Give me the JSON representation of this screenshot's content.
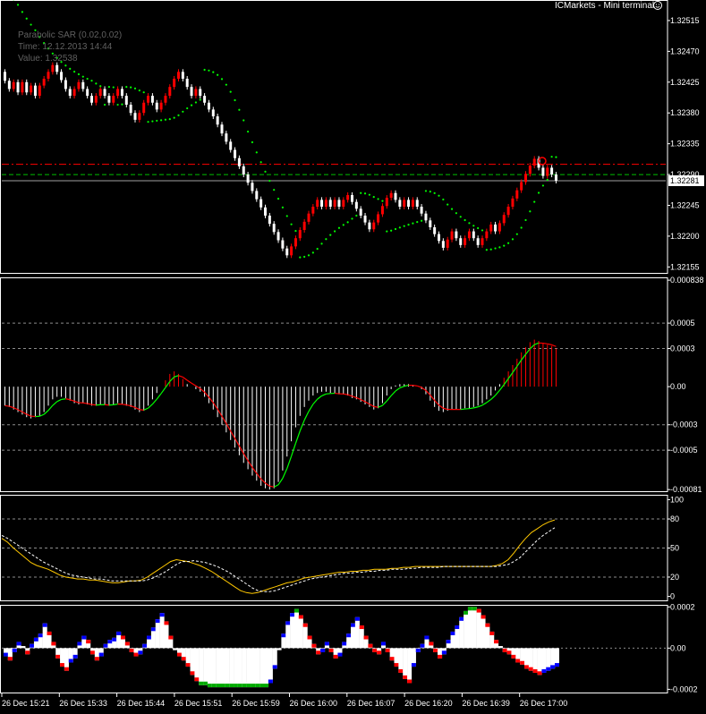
{
  "window": {
    "title": "ICMarkets - Mini terminal",
    "title_icon": "smiley-icon"
  },
  "tooltip": {
    "line1": "Parabolic SAR (0.02,0.02)",
    "line2": "Time: 12.12.2013 14:44",
    "line3": "Value: 1.32538"
  },
  "colors": {
    "background": "#000000",
    "axis": "#ffffff",
    "grid": "#8c8c8c",
    "bull": "#ff0000",
    "bear": "#ffffff",
    "sar": "#00ff00",
    "sell_level": "#ff0000",
    "buy_level": "#00c000",
    "bid_line": "#a0a0a0",
    "osma_pos": "#ff0000",
    "osma_neg": "#ffffff",
    "signal_green": "#00ff00",
    "signal_red": "#ff0000",
    "stoch_main": "#ffc800",
    "stoch_signal": "#ffffff",
    "b_green": "#00aa00",
    "b_blue": "#0000ff",
    "b_red": "#ff0000",
    "b_white": "#ffffff"
  },
  "chart_data": [
    {
      "type": "candlestick",
      "name": "main",
      "y_ticks": [
        "1.32515",
        "1.32470",
        "1.32425",
        "1.32380",
        "1.32335",
        "1.32290",
        "1.32245",
        "1.32200",
        "1.32155"
      ],
      "ylim": [
        1.32145,
        1.32545
      ],
      "price_label": "1.32281",
      "price_label_value": 1.32281,
      "levels": {
        "red_dashdot": 1.32305,
        "green_dashed": 1.3229
      },
      "sar_tooltip": "Parabolic SAR (0.02,0.02)",
      "bars": [
        [
          1.3244,
          1.32427
        ],
        [
          1.32427,
          1.32415
        ],
        [
          1.32415,
          1.32425
        ],
        [
          1.32425,
          1.3241
        ],
        [
          1.3241,
          1.32425
        ],
        [
          1.32425,
          1.3241
        ],
        [
          1.3241,
          1.3242
        ],
        [
          1.3242,
          1.32405
        ],
        [
          1.32405,
          1.3242
        ],
        [
          1.3242,
          1.3243
        ],
        [
          1.3243,
          1.3244
        ],
        [
          1.3244,
          1.3245
        ],
        [
          1.3245,
          1.3244
        ],
        [
          1.3244,
          1.32428
        ],
        [
          1.32428,
          1.32415
        ],
        [
          1.32415,
          1.32405
        ],
        [
          1.32405,
          1.32415
        ],
        [
          1.32415,
          1.32425
        ],
        [
          1.32425,
          1.32415
        ],
        [
          1.32415,
          1.32405
        ],
        [
          1.32405,
          1.32395
        ],
        [
          1.32395,
          1.32405
        ],
        [
          1.32405,
          1.32415
        ],
        [
          1.32415,
          1.32405
        ],
        [
          1.32405,
          1.32395
        ],
        [
          1.32395,
          1.32405
        ],
        [
          1.32405,
          1.32415
        ],
        [
          1.32415,
          1.32405
        ],
        [
          1.32405,
          1.32392
        ],
        [
          1.32392,
          1.3238
        ],
        [
          1.3238,
          1.3237
        ],
        [
          1.3237,
          1.3238
        ],
        [
          1.3238,
          1.32395
        ],
        [
          1.32395,
          1.32405
        ],
        [
          1.32405,
          1.32395
        ],
        [
          1.32395,
          1.32385
        ],
        [
          1.32385,
          1.32395
        ],
        [
          1.32395,
          1.32405
        ],
        [
          1.32405,
          1.32418
        ],
        [
          1.32418,
          1.3243
        ],
        [
          1.3243,
          1.3244
        ],
        [
          1.3244,
          1.3243
        ],
        [
          1.3243,
          1.32418
        ],
        [
          1.32418,
          1.32405
        ],
        [
          1.32405,
          1.32415
        ],
        [
          1.32415,
          1.32405
        ],
        [
          1.32405,
          1.32395
        ],
        [
          1.32395,
          1.32385
        ],
        [
          1.32385,
          1.32375
        ],
        [
          1.32375,
          1.32363
        ],
        [
          1.32363,
          1.3235
        ],
        [
          1.3235,
          1.32338
        ],
        [
          1.32338,
          1.32326
        ],
        [
          1.32326,
          1.32314
        ],
        [
          1.32314,
          1.32302
        ],
        [
          1.32302,
          1.3229
        ],
        [
          1.3229,
          1.32278
        ],
        [
          1.32278,
          1.32266
        ],
        [
          1.32266,
          1.32254
        ],
        [
          1.32254,
          1.32242
        ],
        [
          1.32242,
          1.3223
        ],
        [
          1.3223,
          1.32218
        ],
        [
          1.32218,
          1.32206
        ],
        [
          1.32206,
          1.32194
        ],
        [
          1.32194,
          1.32182
        ],
        [
          1.32182,
          1.32172
        ],
        [
          1.32172,
          1.32185
        ],
        [
          1.32185,
          1.32197
        ],
        [
          1.32197,
          1.32209
        ],
        [
          1.32209,
          1.32221
        ],
        [
          1.32221,
          1.32233
        ],
        [
          1.32233,
          1.32243
        ],
        [
          1.32243,
          1.32253
        ],
        [
          1.32253,
          1.32243
        ],
        [
          1.32243,
          1.32253
        ],
        [
          1.32253,
          1.32243
        ],
        [
          1.32243,
          1.32253
        ],
        [
          1.32253,
          1.32243
        ],
        [
          1.32243,
          1.32253
        ],
        [
          1.32253,
          1.3226
        ],
        [
          1.3226,
          1.3225
        ],
        [
          1.3225,
          1.3224
        ],
        [
          1.3224,
          1.3223
        ],
        [
          1.3223,
          1.3222
        ],
        [
          1.3222,
          1.3221
        ],
        [
          1.3221,
          1.3222
        ],
        [
          1.3222,
          1.32232
        ],
        [
          1.32232,
          1.32244
        ],
        [
          1.32244,
          1.32256
        ],
        [
          1.32256,
          1.32263
        ],
        [
          1.32263,
          1.32253
        ],
        [
          1.32253,
          1.32243
        ],
        [
          1.32243,
          1.32253
        ],
        [
          1.32253,
          1.32243
        ],
        [
          1.32243,
          1.32253
        ],
        [
          1.32253,
          1.32243
        ],
        [
          1.32243,
          1.32233
        ],
        [
          1.32233,
          1.32223
        ],
        [
          1.32223,
          1.32213
        ],
        [
          1.32213,
          1.32203
        ],
        [
          1.32203,
          1.32193
        ],
        [
          1.32193,
          1.32183
        ],
        [
          1.32183,
          1.32195
        ],
        [
          1.32195,
          1.32207
        ],
        [
          1.32207,
          1.32197
        ],
        [
          1.32197,
          1.32187
        ],
        [
          1.32187,
          1.32197
        ],
        [
          1.32197,
          1.32207
        ],
        [
          1.32207,
          1.32197
        ],
        [
          1.32197,
          1.32187
        ],
        [
          1.32187,
          1.32197
        ],
        [
          1.32197,
          1.32207
        ],
        [
          1.32207,
          1.32217
        ],
        [
          1.32217,
          1.32207
        ],
        [
          1.32207,
          1.32219
        ],
        [
          1.32219,
          1.32231
        ],
        [
          1.32231,
          1.32243
        ],
        [
          1.32243,
          1.32255
        ],
        [
          1.32255,
          1.32267
        ],
        [
          1.32267,
          1.32279
        ],
        [
          1.32279,
          1.32291
        ],
        [
          1.32291,
          1.32303
        ],
        [
          1.32303,
          1.32313
        ],
        [
          1.32313,
          1.323
        ],
        [
          1.323,
          1.32288
        ],
        [
          1.32288,
          1.323
        ],
        [
          1.323,
          1.3229
        ],
        [
          1.3229,
          1.32281
        ]
      ]
    },
    {
      "type": "histogram",
      "name": "osma",
      "y_ticks": [
        "0.000838",
        "0.0005",
        "0.0003",
        "0.00",
        "-0.0003",
        "-0.0005",
        "-0.00081"
      ],
      "ylim": [
        -0.00083,
        0.00086
      ],
      "values": [
        -0.00015,
        -0.00016,
        -0.00018,
        -0.0002,
        -0.00022,
        -0.00024,
        -0.00025,
        -0.00024,
        -0.00023,
        -0.0002,
        -0.00015,
        -0.0001,
        -8e-05,
        -8e-05,
        -9e-05,
        -0.00011,
        -0.00013,
        -0.00014,
        -0.00013,
        -0.00014,
        -0.00015,
        -0.00015,
        -0.00014,
        -0.00014,
        -0.00015,
        -0.00014,
        -0.00013,
        -0.00014,
        -0.00015,
        -0.00016,
        -0.00018,
        -0.0002,
        -0.00019,
        -0.00015,
        -0.0001,
        -5e-05,
        0.0,
        5e-05,
        0.0001,
        0.00012,
        0.0001,
        6e-05,
        2e-05,
        0.0,
        -2e-05,
        -4e-05,
        -8e-05,
        -0.00013,
        -0.00018,
        -0.00024,
        -0.0003,
        -0.00036,
        -0.00042,
        -0.00048,
        -0.00054,
        -0.0006,
        -0.00065,
        -0.0007,
        -0.00074,
        -0.00078,
        -0.0008,
        -0.00081,
        -0.0008,
        -0.00075,
        -0.00066,
        -0.00055,
        -0.00043,
        -0.00032,
        -0.00023,
        -0.00016,
        -0.00011,
        -7e-05,
        -5e-05,
        -4e-05,
        -4e-05,
        -5e-05,
        -5e-05,
        -6e-05,
        -6e-05,
        -7e-05,
        -9e-05,
        -0.0001,
        -0.00012,
        -0.00014,
        -0.00016,
        -0.00018,
        -0.00017,
        -0.00013,
        -7e-05,
        -2e-05,
        1e-05,
        2e-05,
        2e-05,
        2e-05,
        1e-05,
        0.0,
        -2e-05,
        -6e-05,
        -0.00011,
        -0.00016,
        -0.00019,
        -0.0002,
        -0.00019,
        -0.00018,
        -0.00018,
        -0.00018,
        -0.00017,
        -0.00017,
        -0.00016,
        -0.00015,
        -0.00013,
        -0.0001,
        -7e-05,
        -3e-05,
        2e-05,
        7e-05,
        0.00012,
        0.00017,
        0.00022,
        0.00027,
        0.00031,
        0.00035,
        0.00037,
        0.00036,
        0.00034,
        0.00033,
        0.00032,
        0.0003
      ]
    },
    {
      "type": "line",
      "name": "stochastic",
      "y_ticks": [
        "100",
        "80",
        "50",
        "20",
        "0"
      ],
      "ylim": [
        -5,
        105
      ],
      "series": [
        {
          "color": "stoch_main",
          "values": [
            60,
            56,
            50,
            45,
            40,
            35,
            32,
            30,
            28,
            25,
            22,
            20,
            19,
            18,
            18,
            17,
            17,
            16,
            15,
            14,
            14,
            15,
            16,
            16,
            17,
            20,
            24,
            28,
            32,
            36,
            38,
            37,
            36,
            34,
            32,
            29,
            26,
            22,
            18,
            14,
            10,
            6,
            4,
            3,
            4,
            6,
            8,
            10,
            12,
            14,
            15,
            17,
            19,
            20,
            21,
            22,
            23,
            24,
            25,
            25,
            26,
            26,
            27,
            27,
            28,
            28,
            28,
            29,
            29,
            30,
            30,
            31,
            31,
            31,
            31,
            31,
            31,
            31,
            31,
            31,
            31,
            31,
            31,
            31,
            31,
            32,
            34,
            38,
            45,
            53,
            60,
            66,
            70,
            74,
            77,
            79
          ]
        },
        {
          "color": "stoch_signal",
          "values": [
            63,
            60,
            56,
            52,
            48,
            44,
            40,
            36,
            33,
            30,
            27,
            24,
            22,
            21,
            20,
            19,
            18,
            18,
            17,
            16,
            16,
            16,
            16,
            16,
            16,
            17,
            19,
            22,
            25,
            29,
            33,
            36,
            36,
            37,
            36,
            35,
            33,
            31,
            28,
            25,
            21,
            17,
            13,
            9,
            6,
            5,
            5,
            6,
            8,
            10,
            12,
            14,
            16,
            18,
            19,
            20,
            21,
            22,
            23,
            24,
            24,
            25,
            25,
            26,
            26,
            27,
            27,
            28,
            28,
            28,
            29,
            29,
            30,
            30,
            30,
            30,
            31,
            31,
            31,
            31,
            31,
            31,
            31,
            31,
            31,
            31,
            32,
            33,
            36,
            40,
            46,
            52,
            58,
            63,
            67,
            71
          ]
        }
      ]
    },
    {
      "type": "histogram",
      "name": "bears_bulls",
      "y_ticks": [
        "0.0002",
        "0.00",
        "-0.0002"
      ],
      "ylim": [
        -0.00022,
        0.00021
      ],
      "values": [
        -4e-05,
        -6e-05,
        -2e-05,
        3e-05,
        1e-05,
        -3e-05,
        2e-05,
        5e-05,
        7e-05,
        0.00012,
        8e-05,
        3e-05,
        -5e-05,
        -9e-05,
        -0.00011,
        -7e-05,
        -5e-05,
        3e-05,
        6e-05,
        4e-05,
        -3e-05,
        -6e-05,
        -4e-05,
        2e-05,
        4e-05,
        5e-05,
        8e-05,
        6e-05,
        3e-05,
        -2e-05,
        -4e-05,
        -3e-05,
        2e-05,
        6e-05,
        0.0001,
        0.00014,
        0.00017,
        0.00013,
        6e-05,
        -1e-05,
        -4e-05,
        -6e-05,
        -9e-05,
        -0.00013,
        -0.00016,
        -0.00018,
        -0.00018,
        -0.00019,
        -0.00019,
        -0.00019,
        -0.00019,
        -0.00019,
        -0.00019,
        -0.00019,
        -0.00019,
        -0.00019,
        -0.00019,
        -0.00019,
        -0.00019,
        -0.00019,
        -0.00019,
        -0.00017,
        -0.0001,
        -1e-05,
        7e-05,
        0.00013,
        0.00017,
        0.00019,
        0.00016,
        0.00012,
        6e-05,
        2e-05,
        -3e-05,
        -2e-05,
        3e-05,
        -2e-05,
        -5e-05,
        -4e-05,
        3e-05,
        7e-05,
        0.00012,
        0.00015,
        0.00011,
        6e-05,
        2e-05,
        -2e-05,
        -3e-05,
        3e-05,
        -2e-05,
        -6e-05,
        -9e-05,
        -0.00012,
        -0.00015,
        -0.00017,
        -9e-05,
        -2e-05,
        2e-05,
        6e-05,
        3e-05,
        -2e-05,
        -5e-05,
        -3e-05,
        4e-05,
        8e-05,
        0.00011,
        0.00015,
        0.00018,
        0.0002,
        0.0002,
        0.00019,
        0.00016,
        0.00012,
        8e-05,
        4e-05,
        1e-05,
        -2e-05,
        -3e-05,
        -5e-05,
        -7e-05,
        -8e-05,
        -0.0001,
        -0.00011,
        -0.00012,
        -0.00013,
        -0.00012,
        -0.00011,
        -0.0001,
        -9e-05
      ]
    }
  ],
  "x_axis": {
    "labels": [
      "26 Dec 15:21",
      "26 Dec 15:33",
      "26 Dec 15:44",
      "26 Dec 15:51",
      "26 Dec 15:59",
      "26 Dec 16:00",
      "26 Dec 16:07",
      "26 Dec 16:20",
      "26 Dec 16:39",
      "26 Dec 17:00"
    ]
  }
}
